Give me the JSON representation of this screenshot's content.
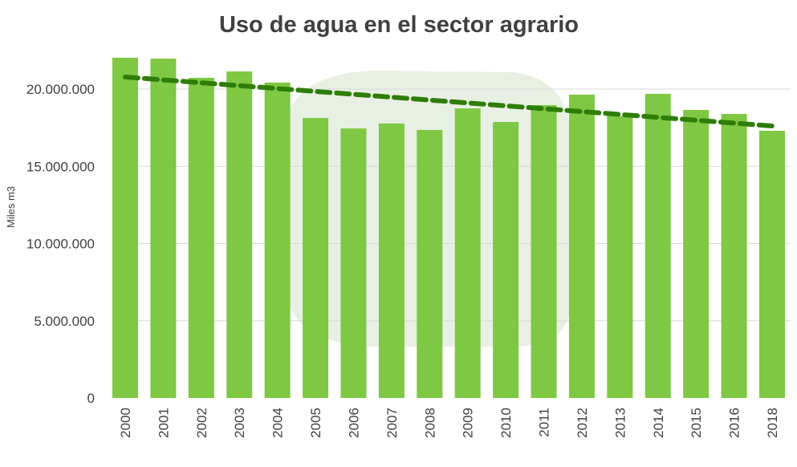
{
  "chart_data": {
    "type": "bar",
    "title": "Uso de agua en el sector agrario",
    "xlabel": "",
    "ylabel": "Miles m3",
    "ylim": [
      0,
      22500000
    ],
    "yticks": [
      0,
      5000000,
      10000000,
      15000000,
      20000000
    ],
    "ytick_labels": [
      "0",
      "5.000.000",
      "10.000.000",
      "15.000.000",
      "20.000.000"
    ],
    "grid": true,
    "categories": [
      "2000",
      "2001",
      "2002",
      "2003",
      "2004",
      "2005",
      "2006",
      "2007",
      "2008",
      "2009",
      "2010",
      "2011",
      "2012",
      "2013",
      "2014",
      "2015",
      "2016",
      "2018"
    ],
    "values": [
      22030000,
      21970000,
      20730000,
      21140000,
      20420000,
      18130000,
      17450000,
      17770000,
      17350000,
      18750000,
      17870000,
      18960000,
      19640000,
      18250000,
      19690000,
      18650000,
      18390000,
      17300000
    ],
    "trendline": {
      "type": "linear",
      "start": 20780000,
      "end": 17610000,
      "style": "dashed"
    },
    "colors": {
      "bar": "#7ec843",
      "trend": "#2e7d08",
      "grid": "#d9d9d9",
      "watermark": "#e8f0e3"
    }
  }
}
